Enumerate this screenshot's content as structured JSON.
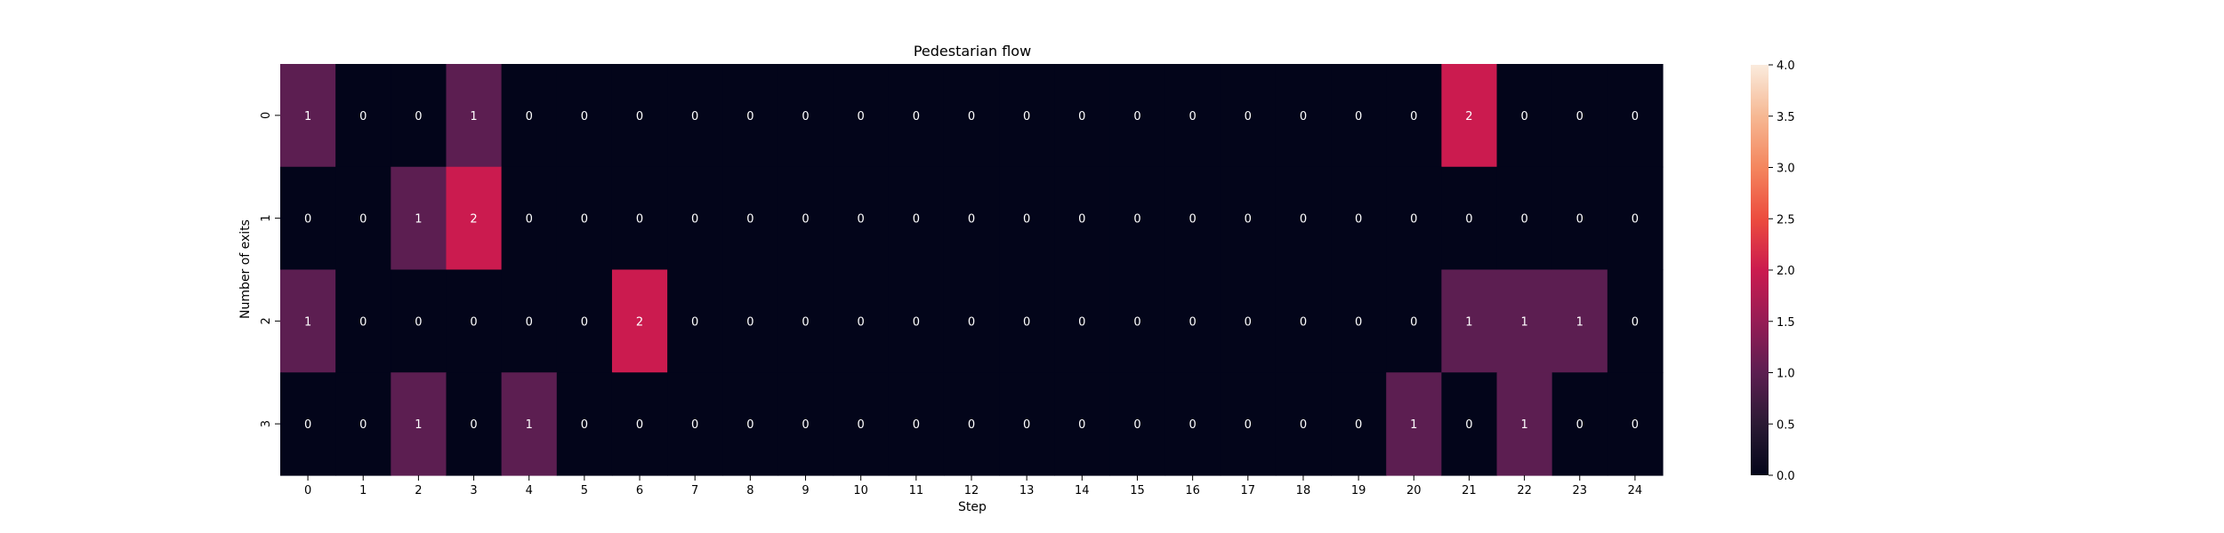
{
  "chart_data": {
    "type": "heatmap",
    "title": "Pedestarian flow",
    "xlabel": "Step",
    "ylabel": "Number of exits",
    "x_categories": [
      "0",
      "1",
      "2",
      "3",
      "4",
      "5",
      "6",
      "7",
      "8",
      "9",
      "10",
      "11",
      "12",
      "13",
      "14",
      "15",
      "16",
      "17",
      "18",
      "19",
      "20",
      "21",
      "22",
      "23",
      "24"
    ],
    "y_categories": [
      "0",
      "1",
      "2",
      "3"
    ],
    "values": [
      [
        1,
        0,
        0,
        1,
        0,
        0,
        0,
        0,
        0,
        0,
        0,
        0,
        0,
        0,
        0,
        0,
        0,
        0,
        0,
        0,
        0,
        2,
        0,
        0,
        0
      ],
      [
        0,
        0,
        1,
        2,
        0,
        0,
        0,
        0,
        0,
        0,
        0,
        0,
        0,
        0,
        0,
        0,
        0,
        0,
        0,
        0,
        0,
        0,
        0,
        0,
        0
      ],
      [
        1,
        0,
        0,
        0,
        0,
        0,
        2,
        0,
        0,
        0,
        0,
        0,
        0,
        0,
        0,
        0,
        0,
        0,
        0,
        0,
        0,
        1,
        1,
        1,
        0
      ],
      [
        0,
        0,
        1,
        0,
        1,
        0,
        0,
        0,
        0,
        0,
        0,
        0,
        0,
        0,
        0,
        0,
        0,
        0,
        0,
        0,
        1,
        0,
        1,
        0,
        0
      ]
    ],
    "colorbar": {
      "vmin": 0,
      "vmax": 4,
      "ticks": [
        "0.0",
        "0.5",
        "1.0",
        "1.5",
        "2.0",
        "2.5",
        "3.0",
        "3.5",
        "4.0"
      ],
      "colormap": "rocket"
    },
    "cell_text_color": "#ffffff",
    "annotations_shown": true
  }
}
